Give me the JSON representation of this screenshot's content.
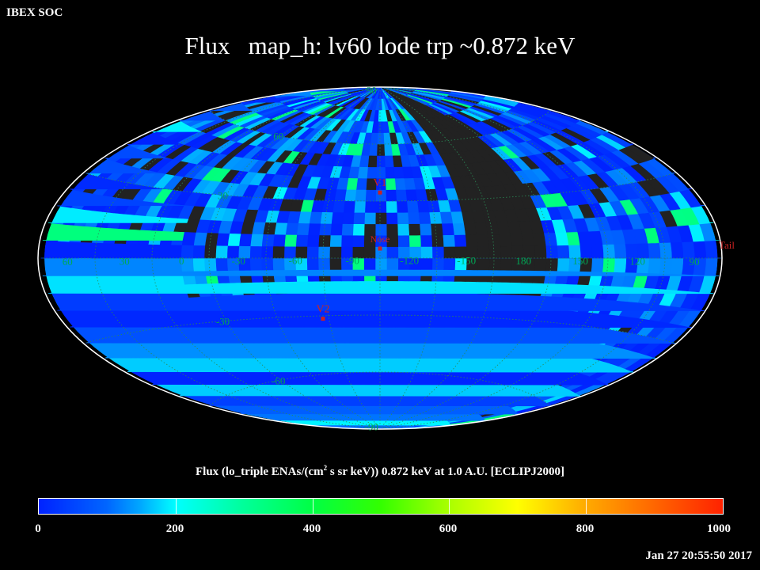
{
  "corner_label": "IBEX SOC",
  "title": "Flux   map_h: lv60 lode trp ~0.872 keV",
  "axis_title_pre": "Flux (lo_triple ENAs/(cm",
  "axis_title_sup": "2",
  "axis_title_post": " s sr keV))  0.872 keV at 1.0 A.U. [ECLIPJ2000]",
  "timestamp": "Jan 27 20:55:50 2017",
  "colorbar": {
    "min": 0,
    "max": 1000,
    "tick_labels": [
      "0",
      "200",
      "400",
      "600",
      "800",
      "1000"
    ]
  },
  "longitude_labels": [
    "60",
    "30",
    "0",
    "-30",
    "-60",
    "-90",
    "-120",
    "-150",
    "180",
    "150",
    "120",
    "90"
  ],
  "latitude_labels": [
    "90",
    "60",
    "30",
    "0",
    "-30",
    "-60",
    "-90"
  ],
  "markers": [
    {
      "name": "V1",
      "lon": 255.5,
      "lat": 34.5
    },
    {
      "name": "Nose",
      "lon": 255.5,
      "lat": 5.0
    },
    {
      "name": "V2",
      "lon": 289.0,
      "lat": -31.5
    },
    {
      "name": "Tail",
      "lon": 75.5,
      "lat": -5.0
    }
  ],
  "colors": {
    "background": "#000000",
    "no_data": "#222222",
    "grid": "#2a8a55",
    "lon_label": "#00a855",
    "marker": "#cc2222"
  },
  "map_data": {
    "projection": "aitoff",
    "center_lon": 255.5,
    "bin_size_deg": 6,
    "typical_flux_range": [
      0,
      250
    ],
    "no_data_bands_lon": [
      [
        170,
        210
      ]
    ]
  }
}
